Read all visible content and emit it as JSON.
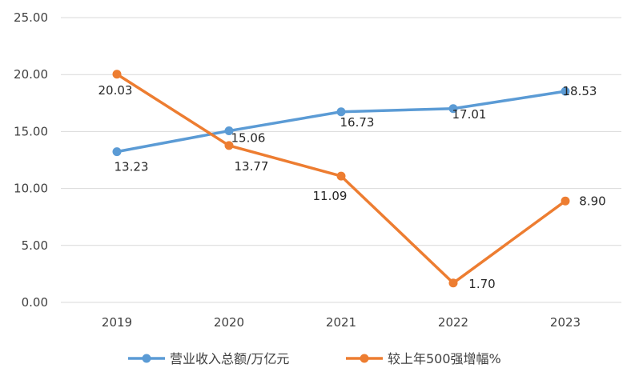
{
  "chart_data": {
    "type": "line",
    "title": "",
    "xlabel": "",
    "ylabel": "",
    "categories": [
      "2019",
      "2020",
      "2021",
      "2022",
      "2023"
    ],
    "ylim": [
      0,
      25
    ],
    "yticks": [
      "0.00",
      "5.00",
      "10.00",
      "15.00",
      "20.00",
      "25.00"
    ],
    "grid": "horizontal",
    "legend_position": "bottom",
    "series": [
      {
        "name": "营业收入总额/万亿元",
        "values": [
          13.23,
          15.06,
          16.73,
          17.01,
          18.53
        ],
        "labels": [
          "13.23",
          "15.06",
          "16.73",
          "17.01",
          "18.53"
        ],
        "color": "#5b9bd5"
      },
      {
        "name": "较上年500强增幅%",
        "values": [
          20.03,
          13.77,
          11.09,
          1.7,
          8.9
        ],
        "labels": [
          "20.03",
          "13.77",
          "11.09",
          "1.70",
          "8.90"
        ],
        "color": "#ed7d31"
      }
    ]
  }
}
